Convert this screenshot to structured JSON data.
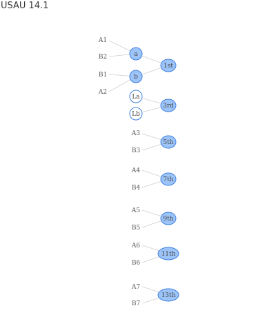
{
  "header": {
    "title": "USAU 14.1"
  },
  "colors": {
    "node_fill": "#9dc4f8",
    "node_stroke": "#3d7fe0",
    "open_fill": "#ffffff",
    "edge": "#cfcfcf",
    "text": "#444444"
  },
  "seeds": {
    "A1": "A1",
    "B2": "B2",
    "B1": "B1",
    "A2": "A2",
    "A3": "A3",
    "B3": "B3",
    "A4": "A4",
    "B4": "B4",
    "A5": "A5",
    "B5": "B5",
    "A6": "A6",
    "B6": "B6",
    "A7": "A7",
    "B7": "B7"
  },
  "games": {
    "a": "a",
    "b": "b",
    "la": "La",
    "lb": "Lb"
  },
  "placements": {
    "p1": "1st",
    "p3": "3rd",
    "p5": "5th",
    "p7": "7th",
    "p9": "9th",
    "p11": "11th",
    "p13": "13th"
  },
  "edges": [
    [
      "A1",
      "a"
    ],
    [
      "B2",
      "a"
    ],
    [
      "B1",
      "b"
    ],
    [
      "A2",
      "b"
    ],
    [
      "a",
      "p1"
    ],
    [
      "b",
      "p1"
    ],
    [
      "la",
      "p3"
    ],
    [
      "lb",
      "p3"
    ],
    [
      "A3",
      "p5"
    ],
    [
      "B3",
      "p5"
    ],
    [
      "A4",
      "p7"
    ],
    [
      "B4",
      "p7"
    ],
    [
      "A5",
      "p9"
    ],
    [
      "B5",
      "p9"
    ],
    [
      "A6",
      "p11"
    ],
    [
      "B6",
      "p11"
    ],
    [
      "A7",
      "p13"
    ],
    [
      "B7",
      "p13"
    ]
  ]
}
